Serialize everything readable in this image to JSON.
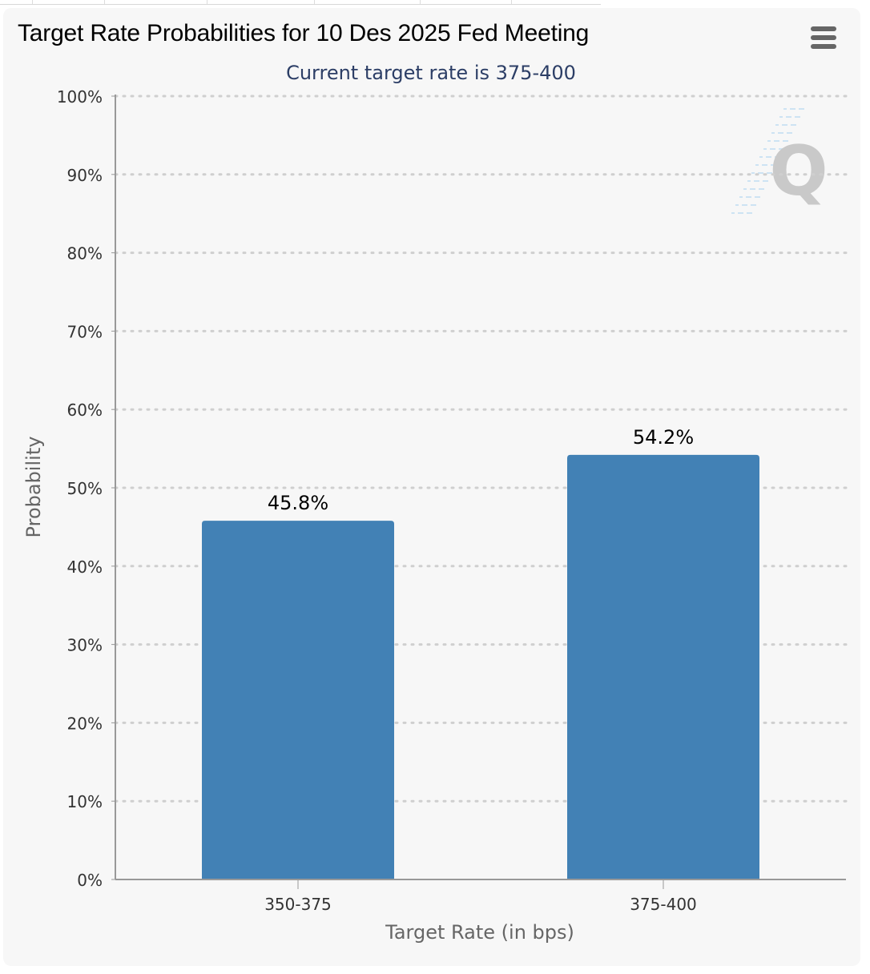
{
  "header": {
    "title": "Target Rate Probabilities for 10 Des 2025 Fed Meeting",
    "menu_icon": "hamburger-menu-icon"
  },
  "watermark": {
    "letter": "Q"
  },
  "colors": {
    "bar": "#4281b5",
    "background": "#f7f7f7",
    "grid": "#cfcfcf",
    "subtitle": "#2c3e66",
    "axis_text": "#333333",
    "axis_title": "#666666"
  },
  "chart_data": {
    "type": "bar",
    "title": "Target Rate Probabilities for 10 Des 2025 Fed Meeting",
    "subtitle": "Current target rate is 375-400",
    "categories": [
      "350-375",
      "375-400"
    ],
    "values": [
      45.8,
      54.2
    ],
    "data_labels": [
      "45.8%",
      "54.2%"
    ],
    "xlabel": "Target Rate (in bps)",
    "ylabel": "Probability",
    "ylim": [
      0,
      100
    ],
    "y_ticks": [
      0,
      10,
      20,
      30,
      40,
      50,
      60,
      70,
      80,
      90,
      100
    ],
    "y_tick_labels": [
      "0%",
      "10%",
      "20%",
      "30%",
      "40%",
      "50%",
      "60%",
      "70%",
      "80%",
      "90%",
      "100%"
    ],
    "grid": true,
    "legend": "none"
  }
}
